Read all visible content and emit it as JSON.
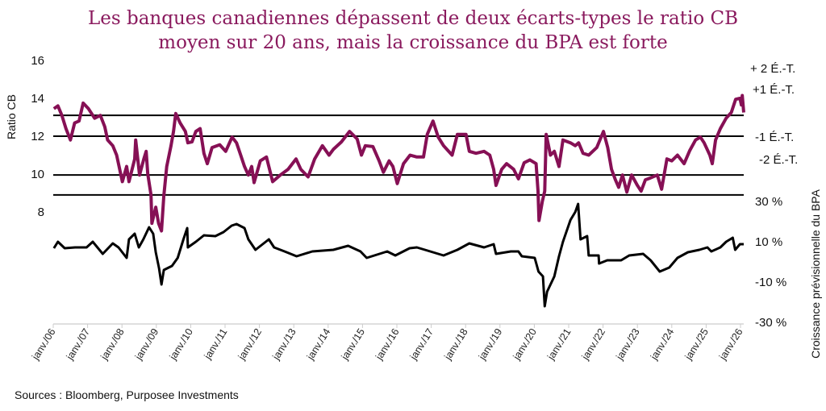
{
  "title_line1": "Les banques canadiennes dépassent de deux écarts-types le ratio CB",
  "title_line2": "moyen sur 20 ans, mais la croissance du BPA est forte",
  "source": "Sources : Bloomberg, Purposee Investments",
  "colors": {
    "title": "#8a1a5e",
    "pb_series": "#861055",
    "eps_series": "#000000",
    "ref_lines": "#000000",
    "axis": "#cccccc"
  },
  "chart_data": {
    "type": "line",
    "title": "Les banques canadiennes dépassent de deux écarts-types le ratio CB moyen sur 20 ans, mais la croissance du BPA est forte",
    "ylabel_left": "Ratio CB",
    "ylabel_right": "Croissance prévisionnelle du BPA",
    "ylim_left": [
      4,
      16
    ],
    "yticks_left": [
      "16",
      "14",
      "12",
      "10",
      "8"
    ],
    "ylim_right": [
      -30,
      50
    ],
    "yticks_right": [
      "30 %",
      "10 %",
      "-10 %",
      "-30 %"
    ],
    "yticks_right_values": [
      30,
      10,
      -10,
      -30
    ],
    "yticks_left_values": [
      16,
      14,
      12,
      10,
      8
    ],
    "x_range": [
      "2006-01-01",
      "2026-02-10"
    ],
    "x_ticks": [
      "janv./06",
      "janv./07",
      "janv./08",
      "janv./09",
      "janv./10",
      "janv./11",
      "janv./12",
      "janv./13",
      "janv./14",
      "janv./15",
      "janv./16",
      "janv./17",
      "janv./18",
      "janv./19",
      "janv./20",
      "janv./21",
      "janv./22",
      "janv./23",
      "janv./24",
      "janv./25",
      "janv./26"
    ],
    "grid": false,
    "reference_lines": [
      {
        "label": "+ 2 É.-T.",
        "value": 13.1
      },
      {
        "label": "+1 É.-T.",
        "value": 12.0
      },
      {
        "label": "-1 É.-T.",
        "value": 9.95
      },
      {
        "label": "-2 É.-T.",
        "value": 8.9
      }
    ],
    "series": [
      {
        "axis": "left",
        "color": "#861055",
        "points": [
          [
            "2006-01-08",
            13.45
          ],
          [
            "2006-02-20",
            13.6
          ],
          [
            "2006-04-01",
            13.1
          ],
          [
            "2006-05-15",
            12.4
          ],
          [
            "2006-07-01",
            11.8
          ],
          [
            "2006-08-15",
            12.7
          ],
          [
            "2006-10-01",
            12.8
          ],
          [
            "2006-11-15",
            13.75
          ],
          [
            "2007-01-10",
            13.45
          ],
          [
            "2007-03-15",
            12.95
          ],
          [
            "2007-05-15",
            13.1
          ],
          [
            "2007-07-01",
            12.5
          ],
          [
            "2007-08-01",
            11.8
          ],
          [
            "2007-09-25",
            11.5
          ],
          [
            "2007-11-05",
            11.0
          ],
          [
            "2008-01-05",
            9.6
          ],
          [
            "2008-02-20",
            10.4
          ],
          [
            "2008-03-15",
            9.6
          ],
          [
            "2008-05-15",
            10.8
          ],
          [
            "2008-05-25",
            11.8
          ],
          [
            "2008-07-05",
            9.95
          ],
          [
            "2008-08-20",
            10.8
          ],
          [
            "2008-09-15",
            11.2
          ],
          [
            "2008-10-01",
            10.0
          ],
          [
            "2008-11-05",
            8.9
          ],
          [
            "2008-11-15",
            7.4
          ],
          [
            "2008-12-25",
            8.25
          ],
          [
            "2009-01-25",
            7.4
          ],
          [
            "2009-02-25",
            7.0
          ],
          [
            "2009-03-20",
            8.85
          ],
          [
            "2009-04-20",
            10.4
          ],
          [
            "2009-06-05",
            11.5
          ],
          [
            "2009-07-01",
            12.25
          ],
          [
            "2009-07-25",
            13.2
          ],
          [
            "2009-09-10",
            12.7
          ],
          [
            "2009-11-05",
            12.25
          ],
          [
            "2009-12-01",
            11.65
          ],
          [
            "2010-01-15",
            11.7
          ],
          [
            "2010-02-25",
            12.25
          ],
          [
            "2010-04-10",
            12.4
          ],
          [
            "2010-05-20",
            11.1
          ],
          [
            "2010-06-25",
            10.55
          ],
          [
            "2010-08-15",
            11.4
          ],
          [
            "2010-11-05",
            11.55
          ],
          [
            "2011-01-08",
            11.2
          ],
          [
            "2011-03-15",
            11.95
          ],
          [
            "2011-05-01",
            11.65
          ],
          [
            "2011-06-15",
            11.0
          ],
          [
            "2011-07-25",
            10.4
          ],
          [
            "2011-09-05",
            9.95
          ],
          [
            "2011-10-10",
            10.4
          ],
          [
            "2011-11-05",
            9.55
          ],
          [
            "2012-01-10",
            10.7
          ],
          [
            "2012-03-15",
            10.9
          ],
          [
            "2012-05-20",
            9.6
          ],
          [
            "2012-08-10",
            9.95
          ],
          [
            "2012-11-01",
            10.25
          ],
          [
            "2013-01-25",
            10.8
          ],
          [
            "2013-03-15",
            10.25
          ],
          [
            "2013-06-01",
            9.85
          ],
          [
            "2013-08-10",
            10.8
          ],
          [
            "2013-11-01",
            11.5
          ],
          [
            "2014-01-10",
            11.0
          ],
          [
            "2014-02-25",
            11.3
          ],
          [
            "2014-05-20",
            11.7
          ],
          [
            "2014-08-15",
            12.25
          ],
          [
            "2014-11-05",
            11.85
          ],
          [
            "2014-12-20",
            11.0
          ],
          [
            "2015-02-01",
            11.5
          ],
          [
            "2015-04-20",
            11.45
          ],
          [
            "2015-06-25",
            10.7
          ],
          [
            "2015-08-10",
            10.1
          ],
          [
            "2015-10-10",
            10.7
          ],
          [
            "2015-11-20",
            10.4
          ],
          [
            "2016-01-05",
            9.5
          ],
          [
            "2016-03-10",
            10.55
          ],
          [
            "2016-05-20",
            11.0
          ],
          [
            "2016-08-01",
            10.9
          ],
          [
            "2016-10-10",
            10.9
          ],
          [
            "2016-11-20",
            12.1
          ],
          [
            "2017-01-20",
            12.8
          ],
          [
            "2017-03-15",
            11.95
          ],
          [
            "2017-05-10",
            11.5
          ],
          [
            "2017-08-10",
            11.0
          ],
          [
            "2017-10-05",
            12.1
          ],
          [
            "2018-01-05",
            12.1
          ],
          [
            "2018-02-10",
            11.2
          ],
          [
            "2018-04-20",
            11.1
          ],
          [
            "2018-07-15",
            11.2
          ],
          [
            "2018-09-15",
            11.0
          ],
          [
            "2018-10-25",
            10.25
          ],
          [
            "2018-11-20",
            9.4
          ],
          [
            "2019-01-20",
            10.25
          ],
          [
            "2019-03-10",
            10.55
          ],
          [
            "2019-05-25",
            10.25
          ],
          [
            "2019-07-15",
            9.75
          ],
          [
            "2019-09-15",
            10.6
          ],
          [
            "2019-11-15",
            10.75
          ],
          [
            "2020-01-20",
            10.55
          ],
          [
            "2020-02-10",
            9.1
          ],
          [
            "2020-02-20",
            7.55
          ],
          [
            "2020-03-25",
            8.55
          ],
          [
            "2020-04-20",
            9.1
          ],
          [
            "2020-05-05",
            12.1
          ],
          [
            "2020-06-20",
            11.0
          ],
          [
            "2020-08-01",
            11.2
          ],
          [
            "2020-09-20",
            10.4
          ],
          [
            "2020-11-01",
            11.8
          ],
          [
            "2021-01-20",
            11.65
          ],
          [
            "2021-03-10",
            11.5
          ],
          [
            "2021-04-15",
            11.65
          ],
          [
            "2021-06-01",
            11.1
          ],
          [
            "2021-08-01",
            11.0
          ],
          [
            "2021-10-25",
            11.4
          ],
          [
            "2022-01-05",
            12.25
          ],
          [
            "2022-02-20",
            11.4
          ],
          [
            "2022-03-30",
            10.25
          ],
          [
            "2022-05-10",
            9.7
          ],
          [
            "2022-06-15",
            9.3
          ],
          [
            "2022-07-25",
            9.95
          ],
          [
            "2022-09-10",
            9.05
          ],
          [
            "2022-11-01",
            9.95
          ],
          [
            "2023-01-01",
            9.4
          ],
          [
            "2023-02-10",
            9.1
          ],
          [
            "2023-03-25",
            9.7
          ],
          [
            "2023-05-20",
            9.8
          ],
          [
            "2023-07-30",
            9.95
          ],
          [
            "2023-09-15",
            9.2
          ],
          [
            "2023-11-10",
            10.8
          ],
          [
            "2024-01-01",
            10.7
          ],
          [
            "2024-03-01",
            11.0
          ],
          [
            "2024-05-10",
            10.55
          ],
          [
            "2024-07-10",
            11.25
          ],
          [
            "2024-09-10",
            11.8
          ],
          [
            "2024-11-01",
            11.95
          ],
          [
            "2024-12-10",
            11.65
          ],
          [
            "2025-02-10",
            11.0
          ],
          [
            "2025-03-05",
            10.55
          ],
          [
            "2025-04-10",
            11.8
          ],
          [
            "2025-05-30",
            12.4
          ],
          [
            "2025-08-01",
            12.95
          ],
          [
            "2025-09-25",
            13.25
          ],
          [
            "2025-11-10",
            13.95
          ],
          [
            "2025-12-25",
            14.0
          ],
          [
            "2026-01-10",
            13.65
          ],
          [
            "2026-01-20",
            14.15
          ],
          [
            "2026-02-05",
            13.25
          ]
        ]
      },
      {
        "axis": "right",
        "color": "#000000",
        "points": [
          [
            "2006-01-08",
            6.8
          ],
          [
            "2006-02-20",
            10
          ],
          [
            "2006-05-01",
            6.8
          ],
          [
            "2006-08-20",
            7.2
          ],
          [
            "2006-12-20",
            7.2
          ],
          [
            "2007-02-25",
            10
          ],
          [
            "2007-06-10",
            4
          ],
          [
            "2007-09-25",
            9.2
          ],
          [
            "2007-11-25",
            7.2
          ],
          [
            "2008-02-20",
            2
          ],
          [
            "2008-03-15",
            11.2
          ],
          [
            "2008-05-15",
            14
          ],
          [
            "2008-06-28",
            7.2
          ],
          [
            "2008-08-15",
            11.2
          ],
          [
            "2008-10-15",
            17.2
          ],
          [
            "2008-11-28",
            14
          ],
          [
            "2008-12-25",
            4.8
          ],
          [
            "2009-01-30",
            -3.2
          ],
          [
            "2009-02-25",
            -11.2
          ],
          [
            "2009-03-20",
            -4
          ],
          [
            "2009-06-15",
            -2
          ],
          [
            "2009-08-15",
            2
          ],
          [
            "2009-10-15",
            11.2
          ],
          [
            "2009-11-25",
            16.8
          ],
          [
            "2009-12-01",
            7.2
          ],
          [
            "2010-02-25",
            10
          ],
          [
            "2010-05-20",
            13.2
          ],
          [
            "2010-09-20",
            12.8
          ],
          [
            "2010-12-15",
            14.8
          ],
          [
            "2011-03-10",
            18
          ],
          [
            "2011-05-01",
            18.8
          ],
          [
            "2011-07-25",
            16.8
          ],
          [
            "2011-09-05",
            11.2
          ],
          [
            "2011-11-20",
            6
          ],
          [
            "2012-04-10",
            11.2
          ],
          [
            "2012-06-05",
            7.2
          ],
          [
            "2012-09-25",
            5.2
          ],
          [
            "2013-02-01",
            2.8
          ],
          [
            "2013-07-15",
            5.2
          ],
          [
            "2014-02-25",
            6
          ],
          [
            "2014-08-01",
            8
          ],
          [
            "2014-12-10",
            5.2
          ],
          [
            "2015-02-15",
            2
          ],
          [
            "2015-09-20",
            5.2
          ],
          [
            "2015-12-15",
            3.2
          ],
          [
            "2016-05-15",
            6.8
          ],
          [
            "2016-08-01",
            7.2
          ],
          [
            "2016-10-25",
            6
          ],
          [
            "2017-05-10",
            3.2
          ],
          [
            "2017-10-05",
            6
          ],
          [
            "2018-02-10",
            9.2
          ],
          [
            "2018-07-15",
            7.2
          ],
          [
            "2018-10-25",
            8.8
          ],
          [
            "2018-11-20",
            4
          ],
          [
            "2019-04-25",
            5.2
          ],
          [
            "2019-07-15",
            5.2
          ],
          [
            "2019-08-20",
            2.8
          ],
          [
            "2020-01-05",
            2
          ],
          [
            "2020-02-15",
            -4.8
          ],
          [
            "2020-04-01",
            -7.2
          ],
          [
            "2020-04-20",
            -22
          ],
          [
            "2020-05-15",
            -14.8
          ],
          [
            "2020-08-01",
            -7.2
          ],
          [
            "2020-09-20",
            2.8
          ],
          [
            "2020-11-01",
            10
          ],
          [
            "2021-01-20",
            20.8
          ],
          [
            "2021-03-10",
            24.8
          ],
          [
            "2021-04-10",
            28.8
          ],
          [
            "2021-05-05",
            11.2
          ],
          [
            "2021-07-15",
            12.8
          ],
          [
            "2021-08-01",
            3.2
          ],
          [
            "2021-11-15",
            3.2
          ],
          [
            "2021-11-20",
            -0.8
          ],
          [
            "2022-02-15",
            0.8
          ],
          [
            "2022-07-10",
            0.8
          ],
          [
            "2022-10-05",
            3.2
          ],
          [
            "2023-03-01",
            4
          ],
          [
            "2023-05-20",
            0.8
          ],
          [
            "2023-08-25",
            -4.8
          ],
          [
            "2023-12-05",
            -2.8
          ],
          [
            "2024-03-01",
            2
          ],
          [
            "2024-06-20",
            4.8
          ],
          [
            "2024-10-20",
            6
          ],
          [
            "2025-01-15",
            7.2
          ],
          [
            "2025-02-25",
            5.2
          ],
          [
            "2025-05-30",
            7.2
          ],
          [
            "2025-08-01",
            10
          ],
          [
            "2025-10-10",
            12
          ],
          [
            "2025-11-05",
            6
          ],
          [
            "2025-12-25",
            8.8
          ],
          [
            "2026-02-05",
            8.8
          ]
        ]
      }
    ]
  }
}
